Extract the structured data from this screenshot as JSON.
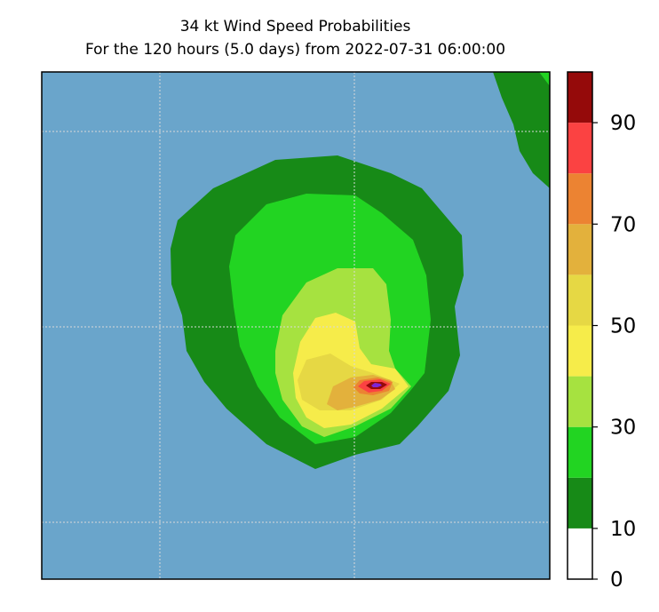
{
  "chart_data": {
    "type": "contour",
    "title": "34 kt Wind Speed Probabilities",
    "subtitle": "For the 120 hours (5.0 days) from 2022-07-31 06:00:00",
    "grid": true,
    "colorbar": {
      "location": "right",
      "levels": [
        0,
        10,
        20,
        30,
        40,
        50,
        60,
        70,
        80,
        90,
        100
      ],
      "colors": [
        "#ffffff",
        "#178a17",
        "#22d422",
        "#a6e240",
        "#f6ec4a",
        "#e6d844",
        "#e3b13c",
        "#ec8332",
        "#fb4242",
        "#950a0a",
        "#7e25d8"
      ],
      "tick_labels": [
        "0",
        "10",
        "30",
        "50",
        "70",
        "90"
      ],
      "tick_values": [
        0,
        10,
        30,
        50,
        70,
        90
      ]
    },
    "background_color": "#6aa5cb",
    "peak_probability": 100
  }
}
